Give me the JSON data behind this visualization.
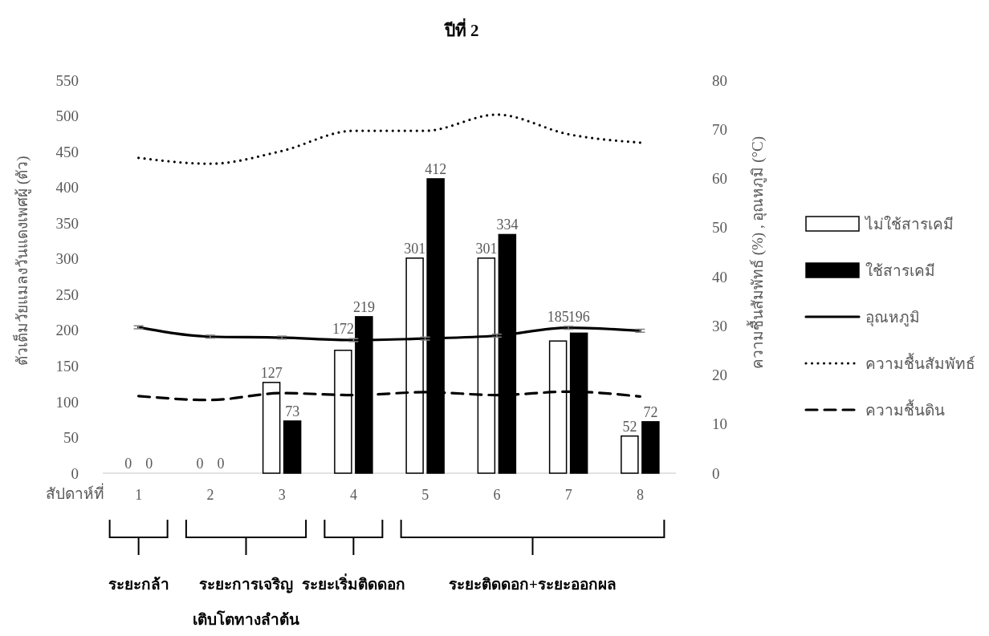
{
  "chart_data": {
    "type": "bar",
    "title": "ปีที่ 2",
    "xlabel": "สัปดาห์ที่",
    "ylabel": "ตัวเต็มวัยแมลงวันแดงเพศผู้ (ตัว)",
    "y2label": "ความชื้นสัมพัทธ์ (%) , อุณหภูมิ (°C)",
    "categories": [
      "1",
      "2",
      "3",
      "4",
      "5",
      "6",
      "7",
      "8"
    ],
    "series": [
      {
        "name": "ไม่ใช้สารเคมี",
        "color": "#ffffff",
        "values": [
          0,
          0,
          127,
          172,
          301,
          301,
          185,
          52
        ],
        "value_labels": [
          "0",
          "0",
          "127",
          "172",
          "301",
          "301",
          "185",
          "52"
        ]
      },
      {
        "name": "ใช้สารเคมี",
        "color": "#000000",
        "values": [
          0,
          0,
          73,
          219,
          412,
          334,
          196,
          72
        ],
        "value_labels": [
          "0",
          "0",
          "73",
          "219",
          "412",
          "334",
          "196",
          "72"
        ]
      },
      {
        "name": "อุณหภูมิ",
        "type": "line",
        "axis": "y2",
        "color": "#000000",
        "line_style": "solid",
        "values": [
          29.7,
          27.8,
          27.6,
          27.1,
          27.4,
          28.0,
          29.6,
          29.0
        ],
        "errors": [
          0.3,
          0.3,
          0.3,
          0.3,
          0.3,
          0.3,
          0.3,
          0.3
        ]
      },
      {
        "name": "ความชื้นสัมพัทธ์",
        "type": "line",
        "axis": "y2",
        "color": "#000000",
        "line_style": "dotted",
        "values": [
          64.2,
          63.0,
          65.6,
          69.7,
          69.7,
          73.0,
          69.0,
          67.3
        ]
      },
      {
        "name": "ความชื้นดิน",
        "type": "line",
        "axis": "y2",
        "color": "#000000",
        "line_style": "dashed",
        "values": [
          15.7,
          14.9,
          16.3,
          15.9,
          16.5,
          15.9,
          16.6,
          15.6
        ]
      }
    ],
    "ylim": [
      0,
      550
    ],
    "yticks": [
      0,
      50,
      100,
      150,
      200,
      250,
      300,
      350,
      400,
      450,
      500,
      550
    ],
    "y2lim": [
      0,
      80
    ],
    "y2ticks": [
      0,
      10,
      20,
      30,
      40,
      50,
      60,
      70,
      80
    ],
    "grid": false,
    "legend": "right",
    "annotations": [
      "ระยะกล้า",
      "ระยะการเจริญ\nเติบโตทางลำต้น",
      "ระยะเริ่มติดดอก",
      "ระยะติดดอก+ระยะออกผล"
    ]
  }
}
